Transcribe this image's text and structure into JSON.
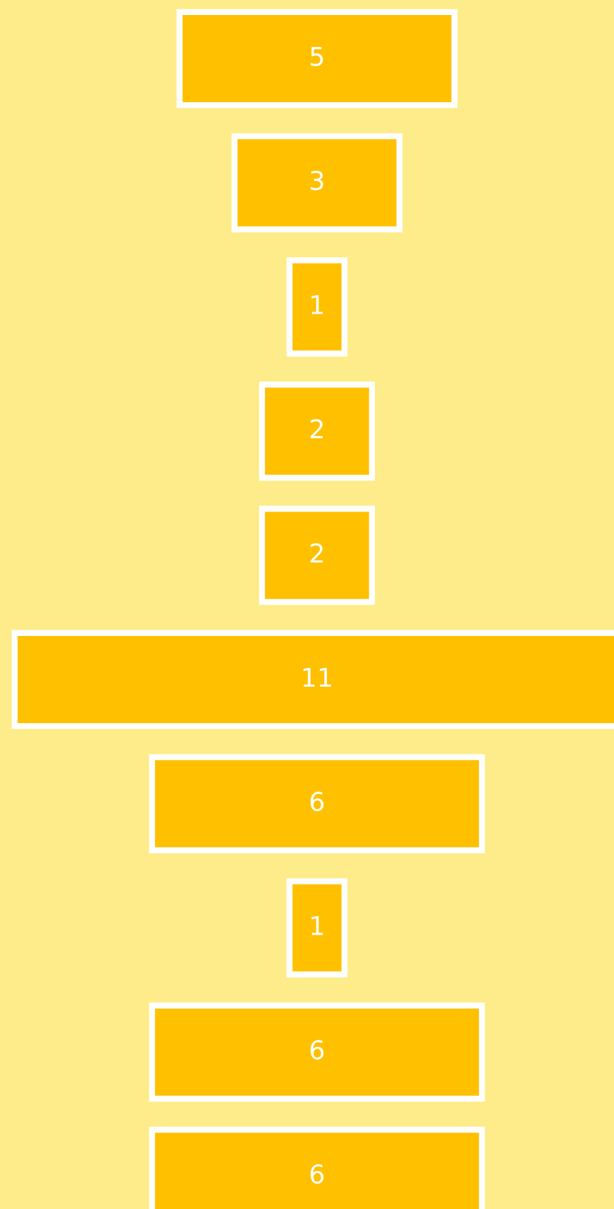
{
  "chart_data": {
    "type": "other",
    "categories": [
      null,
      null,
      null,
      null,
      null,
      null,
      null,
      null,
      null,
      null
    ],
    "values": [
      5,
      3,
      1,
      2,
      2,
      11,
      6,
      1,
      6,
      6
    ],
    "color": "#ffc000",
    "data_labels": true
  }
}
